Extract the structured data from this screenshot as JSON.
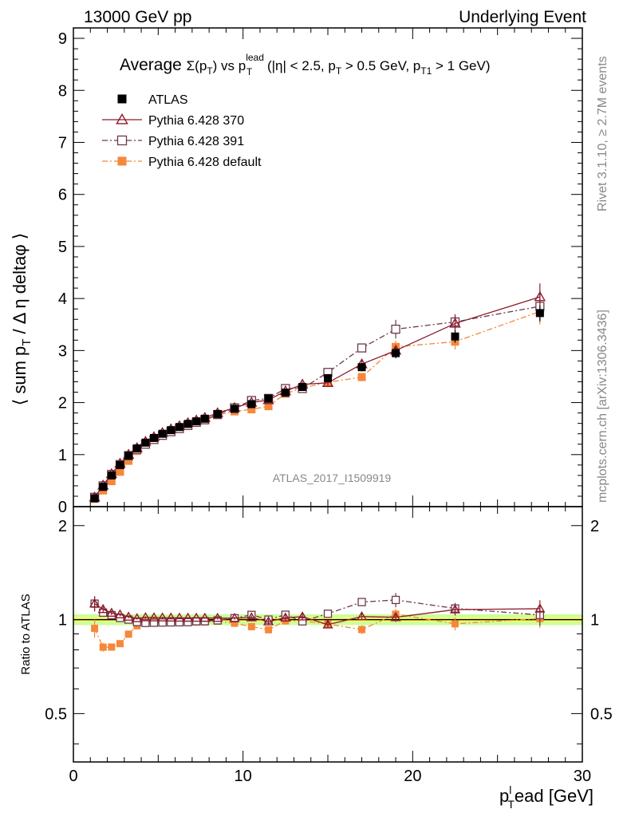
{
  "header": {
    "left": "13000 GeV pp",
    "right": "Underlying Event"
  },
  "side_text": {
    "rivet": "Rivet 3.1.10, ≥ 2.7M events",
    "mcplots": "mcplots.cern.ch [arXiv:1306.3436]"
  },
  "watermark": "ATLAS_2017_I1509919",
  "plot_title": {
    "prefix": "Average ",
    "sigma": "Σ(p",
    "sigma_sub": "T",
    "mid": ") vs p",
    "mid_sub": "T",
    "mid_sup": "lead",
    "cuts": " (|η| < 2.5, p",
    "cuts_sub1": "T",
    "cuts_mid": " > 0.5 GeV, p",
    "cuts_sub2": "T1",
    "cuts_end": " > 1 GeV)"
  },
  "ylabel_main": {
    "pre": "⟨ sum p",
    "sub": "T",
    "post": " / Δ η deltaφ ⟩"
  },
  "ylabel_ratio": "Ratio to ATLAS",
  "xlabel": {
    "pre": "p",
    "sub": "T",
    "sup": "l",
    "post": "ead [GeV]"
  },
  "legend": [
    {
      "label": "ATLAS",
      "color": "#000000",
      "marker": "square-filled",
      "line": "none"
    },
    {
      "label": "Pythia 6.428 370",
      "color": "#8b1a2b",
      "marker": "triangle-open",
      "line": "solid"
    },
    {
      "label": "Pythia 6.428 391",
      "color": "#6b3a4a",
      "marker": "square-open",
      "line": "dashdot"
    },
    {
      "label": "Pythia 6.428 default",
      "color": "#f5883a",
      "marker": "square-filled",
      "line": "dashdot"
    }
  ],
  "chart_data": {
    "type": "scatter",
    "xlim": [
      0,
      30
    ],
    "main_ylim": [
      0,
      9.2
    ],
    "ratio_ylim": [
      0.35,
      2.3
    ],
    "x_ticks": [
      0,
      10,
      20,
      30
    ],
    "main_y_ticks": [
      0,
      1,
      2,
      3,
      4,
      5,
      6,
      7,
      8,
      9
    ],
    "ratio_y_ticks": [
      0.5,
      1,
      2
    ],
    "ratio_band": {
      "inner": [
        0.985,
        1.015
      ],
      "outer": [
        0.96,
        1.04
      ],
      "inner_color": "#ffff66",
      "outer_color": "#ccff99"
    },
    "x": [
      1.25,
      1.75,
      2.25,
      2.75,
      3.25,
      3.75,
      4.25,
      4.75,
      5.25,
      5.75,
      6.25,
      6.75,
      7.25,
      7.75,
      8.5,
      9.5,
      10.5,
      11.5,
      12.5,
      13.5,
      15.0,
      17.0,
      19.0,
      22.5,
      27.5
    ],
    "series": [
      {
        "name": "ATLAS",
        "values": [
          0.16,
          0.38,
          0.6,
          0.8,
          0.98,
          1.12,
          1.23,
          1.32,
          1.4,
          1.47,
          1.53,
          1.59,
          1.64,
          1.69,
          1.78,
          1.88,
          1.97,
          2.08,
          2.19,
          2.3,
          2.47,
          2.68,
          2.95,
          3.27,
          3.72
        ],
        "errors": [
          0.02,
          0.02,
          0.02,
          0.02,
          0.02,
          0.02,
          0.02,
          0.02,
          0.02,
          0.02,
          0.02,
          0.02,
          0.02,
          0.02,
          0.03,
          0.03,
          0.04,
          0.05,
          0.05,
          0.06,
          0.07,
          0.08,
          0.1,
          0.12,
          0.15
        ]
      },
      {
        "name": "Pythia 6.428 370",
        "values": [
          0.18,
          0.41,
          0.63,
          0.83,
          1.0,
          1.13,
          1.25,
          1.34,
          1.42,
          1.49,
          1.55,
          1.61,
          1.66,
          1.71,
          1.8,
          1.9,
          2.0,
          2.05,
          2.22,
          2.35,
          2.38,
          2.74,
          3.0,
          3.52,
          4.03
        ],
        "errors": [
          0.01,
          0.01,
          0.01,
          0.01,
          0.01,
          0.01,
          0.01,
          0.01,
          0.01,
          0.01,
          0.01,
          0.01,
          0.01,
          0.01,
          0.02,
          0.02,
          0.03,
          0.04,
          0.05,
          0.05,
          0.06,
          0.07,
          0.1,
          0.15,
          0.26
        ]
      },
      {
        "name": "Pythia 6.428 391",
        "values": [
          0.18,
          0.4,
          0.62,
          0.81,
          0.98,
          1.1,
          1.2,
          1.29,
          1.37,
          1.44,
          1.5,
          1.56,
          1.62,
          1.67,
          1.77,
          1.9,
          2.04,
          2.08,
          2.27,
          2.27,
          2.58,
          3.05,
          3.41,
          3.55,
          3.85
        ],
        "errors": [
          0.01,
          0.01,
          0.01,
          0.01,
          0.01,
          0.01,
          0.01,
          0.01,
          0.01,
          0.01,
          0.01,
          0.01,
          0.01,
          0.01,
          0.02,
          0.02,
          0.03,
          0.04,
          0.04,
          0.05,
          0.06,
          0.08,
          0.18,
          0.15,
          0.3
        ]
      },
      {
        "name": "Pythia 6.428 default",
        "values": [
          0.15,
          0.31,
          0.49,
          0.67,
          0.88,
          1.07,
          1.2,
          1.3,
          1.37,
          1.44,
          1.5,
          1.56,
          1.61,
          1.66,
          1.76,
          1.83,
          1.87,
          1.93,
          2.17,
          2.28,
          2.39,
          2.49,
          3.07,
          3.17,
          3.75
        ],
        "errors": [
          0.01,
          0.01,
          0.01,
          0.01,
          0.01,
          0.01,
          0.01,
          0.01,
          0.01,
          0.01,
          0.01,
          0.01,
          0.01,
          0.01,
          0.02,
          0.02,
          0.03,
          0.03,
          0.04,
          0.05,
          0.06,
          0.08,
          0.12,
          0.15,
          0.25
        ]
      }
    ]
  }
}
